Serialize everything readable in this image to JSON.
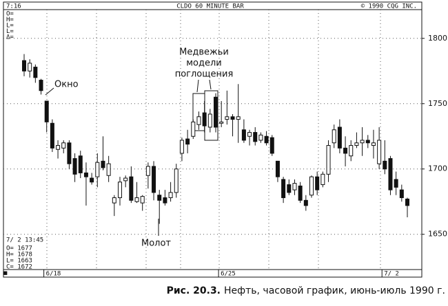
{
  "chart_data": {
    "type": "candlestick",
    "header": {
      "time": "7:16",
      "title": "CLDO 60 MINUTE BAR",
      "copyright": "© 1990 CQG INC."
    },
    "status_labels": [
      "O=",
      "H=",
      "L=",
      "L=",
      "Δ="
    ],
    "info": {
      "time": "7/ 2 13:45",
      "lines": [
        "O= 1677",
        "H= 1678",
        "L= 1663",
        "C= 1672"
      ]
    },
    "annotations": {
      "bearish_engulfing": [
        "Медвежьи",
        "модели",
        "поглощения"
      ],
      "window": "Окно",
      "hammer": "Молот"
    },
    "caption_label": "Рис. 20.3.",
    "caption": "Нефть, часовой график, июнь-июль 1990 г.",
    "categories": [
      null,
      null,
      null,
      null,
      "6/18",
      null,
      null,
      null,
      null,
      null,
      null,
      null,
      null,
      null,
      null,
      null,
      null,
      null,
      null,
      null,
      null,
      null,
      null,
      null,
      null,
      null,
      null,
      null,
      null,
      null,
      null,
      null,
      null,
      null,
      null,
      "6/25",
      null,
      null,
      null,
      null,
      null,
      null,
      null,
      null,
      null,
      null,
      null,
      null,
      null,
      null,
      null,
      null,
      null,
      null,
      null,
      null,
      null,
      null,
      null,
      null,
      null,
      null,
      null,
      null,
      "7/ 2",
      null,
      null,
      null,
      null
    ],
    "open": [
      1783,
      1775,
      1778,
      1768,
      1752,
      1735,
      1715,
      1716,
      1720,
      1708,
      1710,
      1697,
      1693,
      1694,
      1706,
      1695,
      1674,
      1678,
      1691,
      1694,
      1675,
      1674,
      1695,
      1702,
      1680,
      1678,
      1678,
      1682,
      1712,
      1723,
      1725,
      1734,
      1743,
      1732,
      1755,
      1735,
      1738,
      1740,
      1738,
      1730,
      1725,
      1728,
      1722,
      1725,
      1724,
      1706,
      1692,
      1688,
      1684,
      1687,
      1676,
      1680,
      1694,
      1688,
      1696,
      1720,
      1732,
      1716,
      1710,
      1718,
      1720,
      1722,
      1718,
      1704,
      1706,
      1708,
      1692,
      1684,
      1677
    ],
    "high": [
      1788,
      1784,
      1780,
      1769,
      1752,
      1738,
      1722,
      1722,
      1722,
      1712,
      1714,
      1705,
      1697,
      1712,
      1725,
      1710,
      1680,
      1694,
      1695,
      1702,
      1690,
      1680,
      1705,
      1706,
      1684,
      1684,
      1690,
      1704,
      1724,
      1730,
      1738,
      1744,
      1752,
      1746,
      1758,
      1752,
      1760,
      1742,
      1765,
      1738,
      1730,
      1732,
      1728,
      1729,
      1726,
      1706,
      1694,
      1692,
      1692,
      1690,
      1680,
      1695,
      1698,
      1698,
      1722,
      1734,
      1738,
      1725,
      1722,
      1728,
      1732,
      1726,
      1730,
      1732,
      1722,
      1710,
      1698,
      1688,
      1678
    ],
    "low": [
      1771,
      1770,
      1766,
      1757,
      1728,
      1713,
      1708,
      1712,
      1700,
      1690,
      1693,
      1672,
      1688,
      1686,
      1699,
      1690,
      1664,
      1672,
      1686,
      1674,
      1674,
      1668,
      1685,
      1676,
      1658,
      1672,
      1675,
      1678,
      1706,
      1712,
      1723,
      1730,
      1728,
      1728,
      1728,
      1732,
      1734,
      1725,
      1720,
      1720,
      1718,
      1718,
      1720,
      1718,
      1710,
      1690,
      1674,
      1680,
      1680,
      1674,
      1668,
      1678,
      1680,
      1686,
      1690,
      1716,
      1712,
      1702,
      1706,
      1716,
      1710,
      1716,
      1708,
      1700,
      1696,
      1680,
      1680,
      1675,
      1663
    ],
    "close": [
      1775,
      1781,
      1770,
      1760,
      1736,
      1716,
      1718,
      1720,
      1704,
      1696,
      1697,
      1694,
      1690,
      1705,
      1701,
      1704,
      1678,
      1690,
      1693,
      1676,
      1678,
      1679,
      1702,
      1682,
      1676,
      1674,
      1682,
      1700,
      1722,
      1719,
      1736,
      1740,
      1733,
      1742,
      1732,
      1736,
      1740,
      1738,
      1740,
      1722,
      1728,
      1721,
      1726,
      1720,
      1712,
      1694,
      1678,
      1682,
      1689,
      1676,
      1672,
      1694,
      1684,
      1696,
      1718,
      1730,
      1716,
      1712,
      1718,
      1720,
      1722,
      1720,
      1720,
      1722,
      1700,
      1684,
      1686,
      1678,
      1672
    ],
    "ylim": [
      1623,
      1822
    ],
    "yticks": [
      1650,
      1700,
      1750,
      1800
    ],
    "grid": true
  }
}
